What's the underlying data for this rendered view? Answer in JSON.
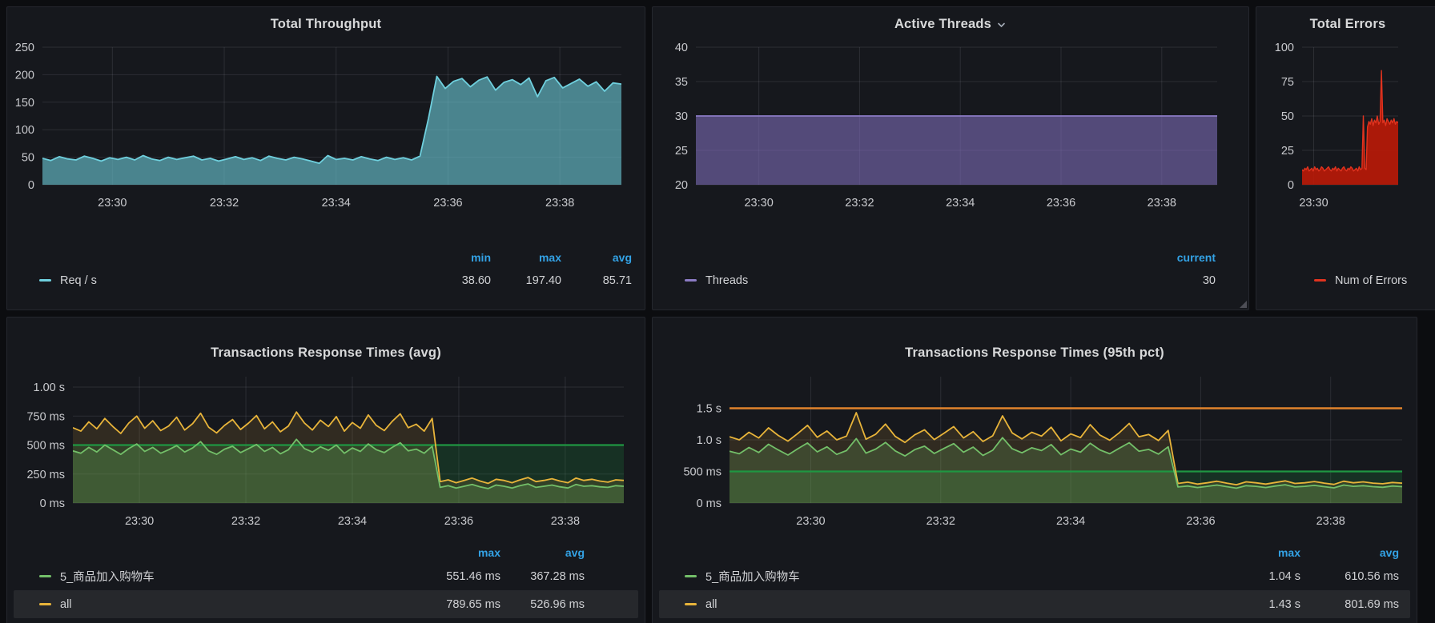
{
  "page": {
    "bg": "#0C0D10",
    "accent_blue": "#33A2E5"
  },
  "panels": [
    {
      "title": "Total Throughput",
      "legend": {
        "headers": [
          "min",
          "max",
          "avg"
        ],
        "rows": [
          {
            "label": "Req / s",
            "color": "#6FD0DE",
            "values": [
              "38.60",
              "197.40",
              "85.71"
            ]
          }
        ]
      }
    },
    {
      "title": "Active Threads",
      "menu": true,
      "legend": {
        "headers": [
          "current"
        ],
        "rows": [
          {
            "label": "Threads",
            "color": "#8B7BC4",
            "values": [
              "30"
            ]
          }
        ]
      }
    },
    {
      "title": "Total Errors",
      "legend": {
        "headers": [],
        "rows": [
          {
            "label": "Num of Errors",
            "color": "#E0331F",
            "values": []
          }
        ]
      }
    },
    {
      "title": "Transactions Response Times (avg)",
      "legend": {
        "headers": [
          "max",
          "avg"
        ],
        "rows": [
          {
            "label": "5_商品加入购物车",
            "color": "#73BF69",
            "values": [
              "551.46 ms",
              "367.28 ms"
            ]
          },
          {
            "label": "all",
            "color": "#E8B43A",
            "values": [
              "789.65 ms",
              "526.96 ms"
            ],
            "highlight": true
          }
        ]
      }
    },
    {
      "title": "Transactions Response Times (95th pct)",
      "legend": {
        "headers": [
          "max",
          "avg"
        ],
        "rows": [
          {
            "label": "5_商品加入购物车",
            "color": "#73BF69",
            "values": [
              "1.04 s",
              "610.56 ms"
            ]
          },
          {
            "label": "all",
            "color": "#E8B43A",
            "values": [
              "1.43 s",
              "801.69 ms"
            ],
            "highlight": true
          }
        ]
      }
    }
  ],
  "chart_data": [
    {
      "type": "area",
      "title": "Total Throughput",
      "ylabel": "Req / s",
      "xlim": [
        28.75,
        39.1
      ],
      "ylim": [
        0,
        250
      ],
      "grid": true,
      "legend_position": "bottom",
      "xticks": [
        {
          "t": 30,
          "label": "23:30"
        },
        {
          "t": 32,
          "label": "23:32"
        },
        {
          "t": 34,
          "label": "23:34"
        },
        {
          "t": 36,
          "label": "23:36"
        },
        {
          "t": 38,
          "label": "23:38"
        }
      ],
      "yticks": [
        {
          "v": 0,
          "label": "0"
        },
        {
          "v": 50,
          "label": "50"
        },
        {
          "v": 100,
          "label": "100"
        },
        {
          "v": 150,
          "label": "150"
        },
        {
          "v": 200,
          "label": "200"
        },
        {
          "v": 250,
          "label": "250"
        }
      ],
      "hlines": [],
      "series": [
        {
          "name": "Req / s",
          "color": "#6FD0DE",
          "fill": "rgba(106,198,212,0.62)",
          "width": 1.8,
          "t0": 28.75,
          "dt": 0.15,
          "values": [
            48,
            44,
            51,
            47,
            45,
            52,
            48,
            43,
            49,
            46,
            50,
            45,
            53,
            47,
            44,
            50,
            46,
            49,
            52,
            45,
            48,
            43,
            47,
            51,
            46,
            49,
            44,
            52,
            48,
            45,
            50,
            47,
            43,
            39,
            53,
            46,
            48,
            45,
            51,
            47,
            44,
            50,
            46,
            49,
            45,
            52,
            120,
            197,
            175,
            188,
            193,
            178,
            190,
            196,
            172,
            186,
            191,
            182,
            194,
            160,
            189,
            195,
            176,
            184,
            192,
            179,
            187,
            170,
            185,
            183
          ]
        }
      ],
      "stats": {
        "min": 38.6,
        "max": 197.4,
        "avg": 85.71
      }
    },
    {
      "type": "area",
      "title": "Active Threads",
      "ylabel": "Threads",
      "xlim": [
        28.75,
        39.1
      ],
      "ylim": [
        20,
        40
      ],
      "grid": true,
      "legend_position": "bottom",
      "xticks": [
        {
          "t": 30,
          "label": "23:30"
        },
        {
          "t": 32,
          "label": "23:32"
        },
        {
          "t": 34,
          "label": "23:34"
        },
        {
          "t": 36,
          "label": "23:36"
        },
        {
          "t": 38,
          "label": "23:38"
        }
      ],
      "yticks": [
        {
          "v": 20,
          "label": "20"
        },
        {
          "v": 25,
          "label": "25"
        },
        {
          "v": 30,
          "label": "30"
        },
        {
          "v": 35,
          "label": "35"
        },
        {
          "v": 40,
          "label": "40"
        }
      ],
      "hlines": [],
      "series": [
        {
          "name": "Threads",
          "color": "#8B7BC4",
          "fill": "rgba(128,110,187,0.58)",
          "width": 1.8,
          "t0": 28.75,
          "dt": 10.35,
          "values": [
            30,
            30
          ]
        }
      ],
      "stats": {
        "current": 30
      }
    },
    {
      "type": "area",
      "title": "Total Errors",
      "ylabel": "Num of Errors",
      "xlim": [
        28.75,
        39.1
      ],
      "ylim": [
        0,
        100
      ],
      "grid": true,
      "legend_position": "bottom",
      "xticks": [
        {
          "t": 30,
          "label": "23:30"
        }
      ],
      "yticks": [
        {
          "v": 0,
          "label": "0"
        },
        {
          "v": 25,
          "label": "25"
        },
        {
          "v": 50,
          "label": "50"
        },
        {
          "v": 75,
          "label": "75"
        },
        {
          "v": 100,
          "label": "100"
        }
      ],
      "hlines": [],
      "series": [
        {
          "name": "Num of Errors",
          "color": "#E0331F",
          "fill": "rgba(187,25,8,0.9)",
          "width": 1.4,
          "t0": 28.75,
          "dt": 0.15,
          "values": [
            11,
            10,
            12,
            11,
            13,
            10,
            11,
            12,
            10,
            13,
            11,
            12,
            10,
            11,
            13,
            12,
            10,
            11,
            12,
            13,
            11,
            10,
            12,
            11,
            13,
            10,
            12,
            11,
            10,
            12,
            13,
            11,
            10,
            12,
            11,
            13,
            12,
            10,
            11,
            12,
            10,
            13,
            11,
            12,
            50,
            12,
            11,
            42,
            46,
            44,
            48,
            43,
            47,
            45,
            50,
            44,
            46,
            83,
            45,
            47,
            43,
            48,
            46,
            44,
            47,
            45,
            48,
            44,
            46,
            45
          ]
        }
      ],
      "stats": {}
    },
    {
      "type": "line",
      "title": "Transactions Response Times (avg)",
      "ylabel": "ms",
      "xlim": [
        28.75,
        39.1
      ],
      "ylim": [
        0,
        1090
      ],
      "grid": true,
      "legend_position": "bottom",
      "xticks": [
        {
          "t": 30,
          "label": "23:30"
        },
        {
          "t": 32,
          "label": "23:32"
        },
        {
          "t": 34,
          "label": "23:34"
        },
        {
          "t": 36,
          "label": "23:36"
        },
        {
          "t": 38,
          "label": "23:38"
        }
      ],
      "yticks": [
        {
          "v": 0,
          "label": "0 ms"
        },
        {
          "v": 250,
          "label": "250 ms"
        },
        {
          "v": 500,
          "label": "500 ms"
        },
        {
          "v": 750,
          "label": "750 ms"
        },
        {
          "v": 1000,
          "label": "1.00 s"
        }
      ],
      "hlines": [
        {
          "v": 500,
          "color": "#1F9642",
          "width": 2.2,
          "fill": "rgba(31,150,66,0.20)"
        }
      ],
      "series": [
        {
          "name": "all",
          "color": "#E8B43A",
          "fill": "rgba(232,180,58,0.13)",
          "width": 1.8,
          "t0": 28.75,
          "dt": 0.15,
          "values": [
            650,
            620,
            700,
            640,
            730,
            660,
            600,
            690,
            750,
            645,
            710,
            625,
            665,
            740,
            630,
            685,
            775,
            655,
            605,
            670,
            720,
            635,
            690,
            755,
            640,
            700,
            615,
            665,
            785,
            690,
            630,
            715,
            660,
            745,
            620,
            695,
            645,
            760,
            670,
            625,
            705,
            770,
            650,
            680,
            620,
            730,
            185,
            200,
            175,
            195,
            215,
            190,
            170,
            205,
            195,
            175,
            200,
            220,
            185,
            195,
            210,
            190,
            175,
            215,
            195,
            205,
            190,
            180,
            200,
            195
          ],
          "stats": {
            "max_ms": 789.65,
            "avg_ms": 526.96
          }
        },
        {
          "name": "5_商品加入购物车",
          "color": "#73BF69",
          "fill": "rgba(115,191,105,0.20)",
          "width": 1.8,
          "t0": 28.75,
          "dt": 0.15,
          "values": [
            450,
            430,
            480,
            440,
            500,
            460,
            420,
            470,
            510,
            445,
            480,
            430,
            460,
            495,
            440,
            475,
            530,
            450,
            420,
            465,
            490,
            435,
            470,
            505,
            445,
            480,
            425,
            460,
            550,
            470,
            440,
            485,
            455,
            500,
            430,
            475,
            445,
            510,
            460,
            435,
            480,
            520,
            450,
            465,
            430,
            490,
            135,
            150,
            130,
            145,
            160,
            140,
            125,
            155,
            145,
            130,
            150,
            165,
            135,
            145,
            155,
            140,
            130,
            160,
            145,
            150,
            140,
            135,
            150,
            145
          ],
          "stats": {
            "max_ms": 551.46,
            "avg_ms": 367.28
          }
        }
      ]
    },
    {
      "type": "line",
      "title": "Transactions Response Times (95th pct)",
      "ylabel": "ms",
      "xlim": [
        28.75,
        39.1
      ],
      "ylim": [
        0,
        2000
      ],
      "grid": true,
      "legend_position": "bottom",
      "xticks": [
        {
          "t": 30,
          "label": "23:30"
        },
        {
          "t": 32,
          "label": "23:32"
        },
        {
          "t": 34,
          "label": "23:34"
        },
        {
          "t": 36,
          "label": "23:36"
        },
        {
          "t": 38,
          "label": "23:38"
        }
      ],
      "yticks": [
        {
          "v": 0,
          "label": "0 ms"
        },
        {
          "v": 500,
          "label": "500 ms"
        },
        {
          "v": 1000,
          "label": "1.0 s"
        },
        {
          "v": 1500,
          "label": "1.5 s"
        }
      ],
      "hlines": [
        {
          "v": 500,
          "color": "#1F9642",
          "width": 2.2,
          "fill": "rgba(31,150,66,0.20)"
        },
        {
          "v": 1500,
          "color": "#E0832C",
          "width": 2.6,
          "fill": null
        }
      ],
      "series": [
        {
          "name": "all",
          "color": "#E8B43A",
          "fill": "rgba(232,180,58,0.13)",
          "width": 1.8,
          "t0": 28.75,
          "dt": 0.15,
          "values": [
            1050,
            1000,
            1120,
            1030,
            1190,
            1070,
            980,
            1100,
            1230,
            1040,
            1140,
            1000,
            1060,
            1430,
            1010,
            1090,
            1250,
            1055,
            960,
            1080,
            1160,
            1005,
            1105,
            1210,
            1030,
            1130,
            975,
            1065,
            1380,
            1110,
            1015,
            1120,
            1060,
            1200,
            985,
            1095,
            1035,
            1240,
            1075,
            995,
            1115,
            1260,
            1050,
            1085,
            990,
            1150,
            310,
            330,
            300,
            320,
            345,
            315,
            290,
            335,
            320,
            300,
            325,
            350,
            310,
            320,
            340,
            315,
            295,
            345,
            320,
            335,
            315,
            305,
            325,
            315
          ],
          "stats": {
            "max_s": 1.43,
            "avg_ms": 801.69
          }
        },
        {
          "name": "5_商品加入购物车",
          "color": "#73BF69",
          "fill": "rgba(115,191,105,0.20)",
          "width": 1.8,
          "t0": 28.75,
          "dt": 0.15,
          "values": [
            820,
            780,
            880,
            800,
            930,
            840,
            760,
            860,
            950,
            810,
            890,
            770,
            830,
            1020,
            790,
            855,
            960,
            825,
            745,
            845,
            900,
            785,
            865,
            940,
            805,
            885,
            755,
            835,
            1035,
            860,
            795,
            875,
            830,
            925,
            765,
            855,
            805,
            945,
            840,
            780,
            870,
            955,
            820,
            850,
            775,
            890,
            255,
            270,
            245,
            265,
            285,
            260,
            235,
            275,
            265,
            245,
            270,
            290,
            255,
            265,
            280,
            260,
            240,
            285,
            265,
            275,
            260,
            250,
            270,
            260
          ],
          "stats": {
            "max_s": 1.04,
            "avg_ms": 610.56
          }
        }
      ]
    }
  ]
}
